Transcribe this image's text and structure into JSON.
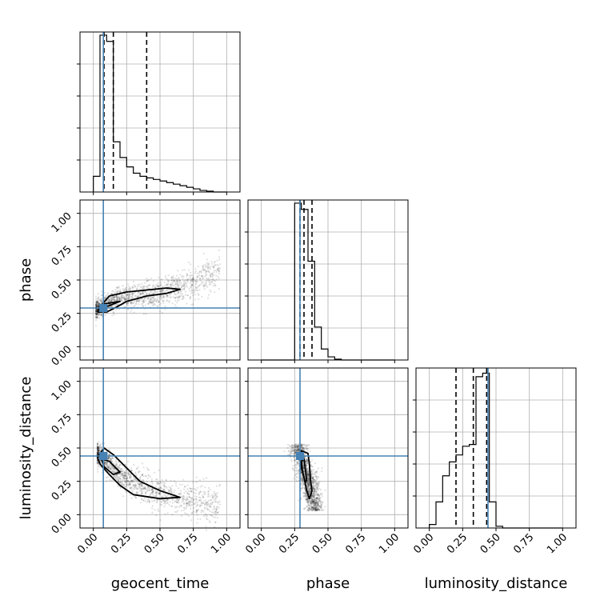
{
  "chart_data": {
    "type": "corner",
    "parameters": [
      "geocent_time",
      "phase",
      "luminosity_distance"
    ],
    "axis_range": [
      -0.1,
      1.1
    ],
    "tick_labels": [
      "0.00",
      "0.25",
      "0.50",
      "0.75",
      "1.00"
    ],
    "tick_values": [
      0,
      0.25,
      0.5,
      0.75,
      1.0
    ],
    "grid": true,
    "truth_color": "#4682b4",
    "injected_values": {
      "geocent_time": 0.075,
      "phase": 0.29,
      "luminosity_distance": 0.44
    },
    "quantiles": {
      "geocent_time": [
        0.08,
        0.15,
        0.4
      ],
      "phase": [
        0.29,
        0.32,
        0.38
      ],
      "luminosity_distance": [
        0.2,
        0.33,
        0.43
      ]
    },
    "histograms": {
      "geocent_time": {
        "bin_edges": [
          0.0,
          0.05,
          0.1,
          0.15,
          0.2,
          0.25,
          0.3,
          0.35,
          0.4,
          0.45,
          0.5,
          0.55,
          0.6,
          0.65,
          0.7,
          0.75,
          0.8,
          0.85,
          0.9,
          0.95,
          1.0
        ],
        "counts": [
          0.1,
          1.0,
          0.96,
          0.32,
          0.22,
          0.16,
          0.12,
          0.1,
          0.09,
          0.08,
          0.07,
          0.06,
          0.05,
          0.04,
          0.03,
          0.02,
          0.01,
          0.005,
          0.0,
          0.0
        ],
        "ymax": 1.02
      },
      "phase": {
        "bin_edges": [
          0.0,
          0.05,
          0.1,
          0.15,
          0.2,
          0.25,
          0.3,
          0.35,
          0.4,
          0.45,
          0.5,
          0.55,
          0.6,
          0.65,
          0.7,
          0.75,
          0.8,
          0.85,
          0.9,
          0.95,
          1.0
        ],
        "counts": [
          0,
          0,
          0,
          0,
          0,
          1.0,
          0.96,
          0.63,
          0.21,
          0.07,
          0.02,
          0.005,
          0,
          0,
          0,
          0,
          0,
          0,
          0,
          0
        ],
        "ymax": 1.02
      },
      "luminosity_distance": {
        "bin_edges": [
          0.0,
          0.05,
          0.1,
          0.15,
          0.2,
          0.25,
          0.3,
          0.35,
          0.4,
          0.45,
          0.5,
          0.55,
          0.6,
          0.65,
          0.7,
          0.75,
          0.8,
          0.85,
          0.9,
          0.95,
          1.0
        ],
        "counts": [
          0.02,
          0.15,
          0.3,
          0.38,
          0.42,
          0.47,
          0.48,
          0.87,
          0.89,
          0.15,
          0.01,
          0,
          0,
          0,
          0,
          0,
          0,
          0,
          0,
          0
        ],
        "ymax": 0.92
      }
    },
    "scatter": {
      "phase_vs_geocent_time": {
        "trend": [
          [
            0.02,
            0.28
          ],
          [
            0.1,
            0.31
          ],
          [
            0.2,
            0.36
          ],
          [
            0.35,
            0.38
          ],
          [
            0.5,
            0.4
          ],
          [
            0.65,
            0.44
          ],
          [
            0.8,
            0.5
          ],
          [
            0.95,
            0.58
          ]
        ],
        "contour_outer": [
          [
            0.03,
            0.26
          ],
          [
            0.05,
            0.3
          ],
          [
            0.12,
            0.38
          ],
          [
            0.25,
            0.41
          ],
          [
            0.45,
            0.43
          ],
          [
            0.55,
            0.44
          ],
          [
            0.65,
            0.43
          ],
          [
            0.55,
            0.4
          ],
          [
            0.4,
            0.38
          ],
          [
            0.25,
            0.34
          ],
          [
            0.18,
            0.3
          ],
          [
            0.1,
            0.26
          ],
          [
            0.03,
            0.26
          ]
        ],
        "contour_inner": [
          [
            0.04,
            0.28
          ],
          [
            0.08,
            0.32
          ],
          [
            0.2,
            0.34
          ],
          [
            0.1,
            0.3
          ],
          [
            0.04,
            0.28
          ]
        ]
      },
      "luminosity_distance_vs_geocent_time": {
        "trend": [
          [
            0.03,
            0.46
          ],
          [
            0.1,
            0.4
          ],
          [
            0.2,
            0.3
          ],
          [
            0.35,
            0.22
          ],
          [
            0.5,
            0.16
          ],
          [
            0.65,
            0.12
          ],
          [
            0.8,
            0.09
          ],
          [
            0.95,
            0.06
          ]
        ],
        "contour_outer": [
          [
            0.03,
            0.43
          ],
          [
            0.08,
            0.5
          ],
          [
            0.15,
            0.45
          ],
          [
            0.25,
            0.35
          ],
          [
            0.35,
            0.25
          ],
          [
            0.5,
            0.18
          ],
          [
            0.65,
            0.13
          ],
          [
            0.5,
            0.12
          ],
          [
            0.3,
            0.15
          ],
          [
            0.2,
            0.22
          ],
          [
            0.12,
            0.3
          ],
          [
            0.05,
            0.38
          ],
          [
            0.03,
            0.43
          ]
        ],
        "contour_inner": [
          [
            0.06,
            0.42
          ],
          [
            0.12,
            0.4
          ],
          [
            0.2,
            0.32
          ],
          [
            0.15,
            0.3
          ],
          [
            0.08,
            0.36
          ],
          [
            0.06,
            0.42
          ]
        ]
      },
      "luminosity_distance_vs_phase": {
        "trend": [
          [
            0.28,
            0.44
          ],
          [
            0.31,
            0.4
          ],
          [
            0.33,
            0.32
          ],
          [
            0.35,
            0.24
          ],
          [
            0.37,
            0.16
          ],
          [
            0.4,
            0.08
          ]
        ],
        "contour_outer": [
          [
            0.29,
            0.42
          ],
          [
            0.3,
            0.48
          ],
          [
            0.35,
            0.46
          ],
          [
            0.36,
            0.38
          ],
          [
            0.37,
            0.25
          ],
          [
            0.38,
            0.18
          ],
          [
            0.36,
            0.12
          ],
          [
            0.34,
            0.18
          ],
          [
            0.32,
            0.28
          ],
          [
            0.3,
            0.35
          ],
          [
            0.29,
            0.42
          ]
        ],
        "contour_inner": [
          [
            0.3,
            0.4
          ],
          [
            0.32,
            0.42
          ],
          [
            0.33,
            0.34
          ],
          [
            0.34,
            0.26
          ],
          [
            0.33,
            0.24
          ],
          [
            0.31,
            0.32
          ],
          [
            0.3,
            0.4
          ]
        ]
      }
    }
  }
}
